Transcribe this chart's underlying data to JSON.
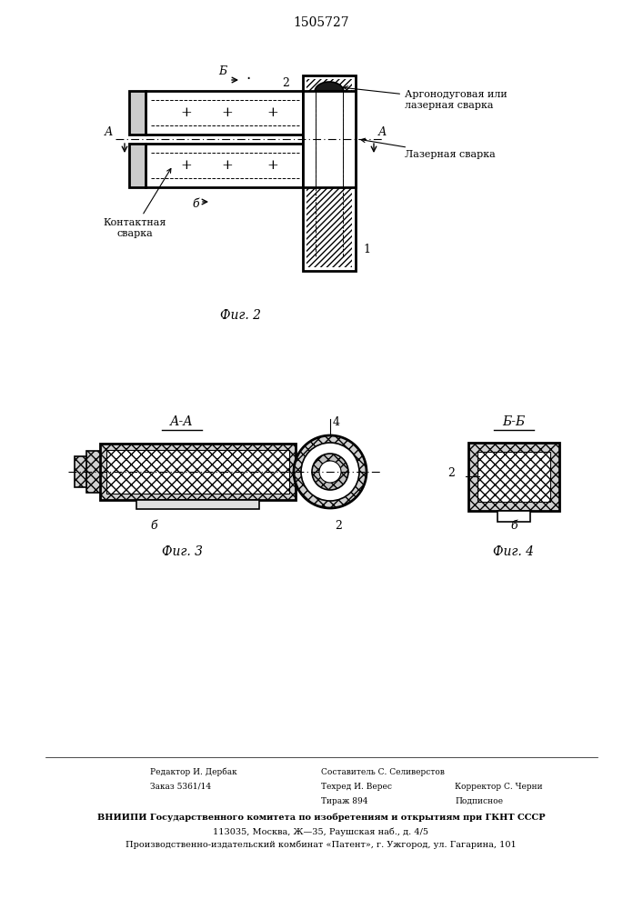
{
  "patent_number": "1505727",
  "fig2_label": "Фиг. 2",
  "fig3_label": "Фиг. 3",
  "fig4_label": "Фиг. 4",
  "label_AA": "А-А",
  "label_BB": "Б-Б",
  "annotation1": "Аргонодуговая или\nлазерная сварка",
  "annotation2": "Лазерная сварка",
  "annotation3": "Контактная\nсварка",
  "num1": "1",
  "num2": "2",
  "num4": "4",
  "footer_line4": "ВНИИПИ Государственного комитета по изобретениям и открытиям при ГКНТ СССР",
  "footer_line5": "113035, Москва, Ж—35, Раушская наб., д. 4/5",
  "footer_line6": "Производственно-издательский комбинат «Патент», г. Ужгород, ул. Гагарина, 101",
  "bg_color": "#ffffff"
}
